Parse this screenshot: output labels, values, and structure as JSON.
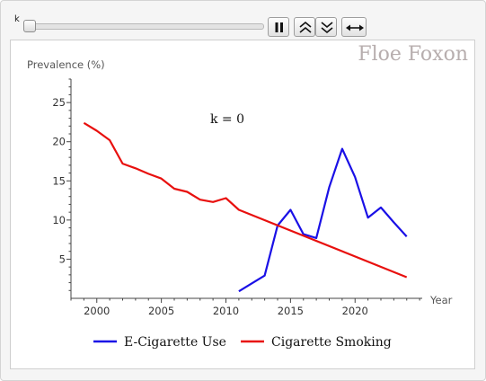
{
  "controls": {
    "slider_label": "k",
    "slider_value": 0,
    "pause_icon": "pause-icon",
    "faster_icon": "double-chevron-up-icon",
    "slower_icon": "double-chevron-down-icon",
    "direction_icon": "left-right-arrow-icon"
  },
  "watermark": "Floe Foxon",
  "annotation": "k = 0",
  "colors": {
    "ecig": "#1a10e6",
    "smoking": "#e8100e",
    "axis": "#444444"
  },
  "chart_data": {
    "type": "line",
    "title": "",
    "xlabel": "Year",
    "ylabel": "Prevalence (%)",
    "xlim": [
      1998,
      2025.2
    ],
    "ylim": [
      0,
      28
    ],
    "x_ticks": [
      2000,
      2005,
      2010,
      2015,
      2020
    ],
    "y_ticks": [
      5,
      10,
      15,
      20,
      25
    ],
    "grid": false,
    "legend_position": "bottom",
    "series": [
      {
        "name": "E-Cigarette Use",
        "color": "#1a10e6",
        "x": [
          2011,
          2012,
          2013,
          2014,
          2015,
          2016,
          2017,
          2018,
          2019,
          2020,
          2021,
          2022,
          2023,
          2024
        ],
        "values": [
          0.9,
          1.9,
          2.9,
          9.3,
          11.3,
          8.2,
          7.7,
          14.2,
          19.1,
          15.5,
          10.3,
          11.6,
          9.7,
          7.9
        ]
      },
      {
        "name": "Cigarette Smoking",
        "color": "#e8100e",
        "x": [
          1999,
          2000,
          2001,
          2002,
          2003,
          2004,
          2005,
          2006,
          2007,
          2008,
          2009,
          2010,
          2011,
          2024
        ],
        "values": [
          22.4,
          21.4,
          20.2,
          17.2,
          16.6,
          15.9,
          15.3,
          14.0,
          13.6,
          12.6,
          12.3,
          12.8,
          11.3,
          2.7
        ]
      }
    ]
  }
}
